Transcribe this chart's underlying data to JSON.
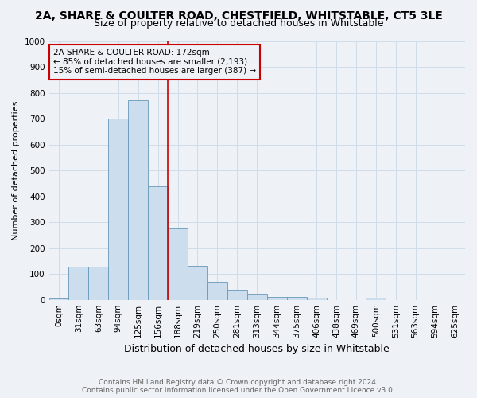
{
  "title": "2A, SHARE & COULTER ROAD, CHESTFIELD, WHITSTABLE, CT5 3LE",
  "subtitle": "Size of property relative to detached houses in Whitstable",
  "xlabel": "Distribution of detached houses by size in Whitstable",
  "ylabel": "Number of detached properties",
  "bin_labels": [
    "0sqm",
    "31sqm",
    "63sqm",
    "94sqm",
    "125sqm",
    "156sqm",
    "188sqm",
    "219sqm",
    "250sqm",
    "281sqm",
    "313sqm",
    "344sqm",
    "375sqm",
    "406sqm",
    "438sqm",
    "469sqm",
    "500sqm",
    "531sqm",
    "563sqm",
    "594sqm",
    "625sqm"
  ],
  "bar_heights": [
    5,
    128,
    128,
    700,
    770,
    440,
    275,
    130,
    70,
    40,
    25,
    12,
    12,
    8,
    0,
    0,
    8,
    0,
    0,
    0,
    0
  ],
  "bar_color": "#ccdded",
  "bar_edge_color": "#6699bb",
  "ylim": [
    0,
    1000
  ],
  "yticks": [
    0,
    100,
    200,
    300,
    400,
    500,
    600,
    700,
    800,
    900,
    1000
  ],
  "red_line_bin_index": 6,
  "red_line_color": "#cc0000",
  "annotation_text_line1": "2A SHARE & COULTER ROAD: 172sqm",
  "annotation_text_line2": "← 85% of detached houses are smaller (2,193)",
  "annotation_text_line3": "15% of semi-detached houses are larger (387) →",
  "annotation_box_color": "#cc0000",
  "footnote1": "Contains HM Land Registry data © Crown copyright and database right 2024.",
  "footnote2": "Contains public sector information licensed under the Open Government Licence v3.0.",
  "background_color": "#eef2f7",
  "grid_color": "#d0dce8",
  "title_fontsize": 10,
  "subtitle_fontsize": 9,
  "xlabel_fontsize": 9,
  "ylabel_fontsize": 8,
  "tick_fontsize": 7.5,
  "annotation_fontsize": 7.5,
  "footnote_fontsize": 6.5
}
